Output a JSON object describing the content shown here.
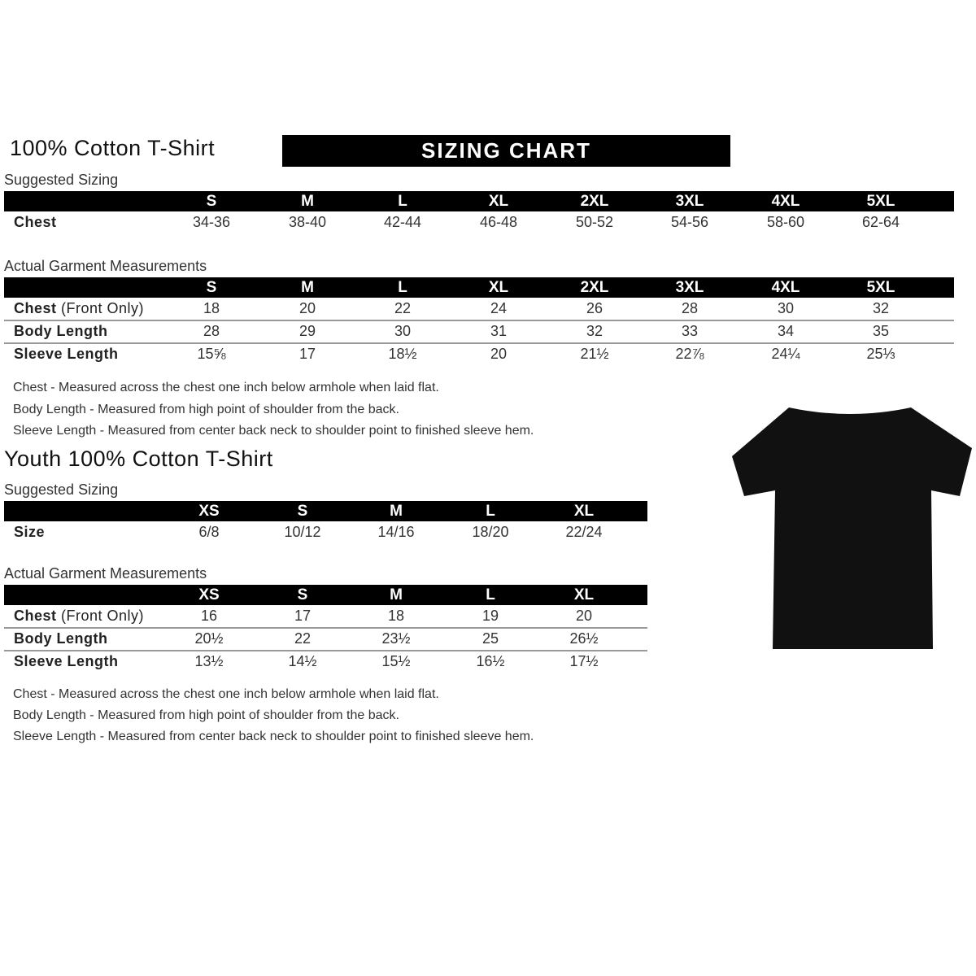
{
  "adult": {
    "title": "100% Cotton T-Shirt",
    "banner": "SIZING CHART",
    "suggested_label": "Suggested Sizing",
    "sizes": [
      "S",
      "M",
      "L",
      "XL",
      "2XL",
      "3XL",
      "4XL",
      "5XL"
    ],
    "suggested_rows": [
      {
        "label": "Chest",
        "values": [
          "34-36",
          "38-40",
          "42-44",
          "46-48",
          "50-52",
          "54-56",
          "58-60",
          "62-64"
        ]
      }
    ],
    "actual_label": "Actual Garment Measurements",
    "actual_rows": [
      {
        "label": "Chest",
        "label_note": "(Front Only)",
        "values": [
          "18",
          "20",
          "22",
          "24",
          "26",
          "28",
          "30",
          "32"
        ]
      },
      {
        "label": "Body Length",
        "values": [
          "28",
          "29",
          "30",
          "31",
          "32",
          "33",
          "34",
          "35"
        ]
      },
      {
        "label": "Sleeve Length",
        "values": [
          "15⅝",
          "17",
          "18½",
          "20",
          "21½",
          "22⅞",
          "24¼",
          "25⅓"
        ]
      }
    ],
    "notes": [
      "Chest - Measured across the chest one inch below armhole when laid flat.",
      "Body Length - Measured from high point of shoulder from the back.",
      "Sleeve Length - Measured from center back neck to shoulder point to finished sleeve hem."
    ]
  },
  "youth": {
    "title": "Youth 100% Cotton T-Shirt",
    "suggested_label": "Suggested Sizing",
    "sizes": [
      "XS",
      "S",
      "M",
      "L",
      "XL"
    ],
    "suggested_rows": [
      {
        "label": "Size",
        "values": [
          "6/8",
          "10/12",
          "14/16",
          "18/20",
          "22/24"
        ]
      }
    ],
    "actual_label": "Actual Garment Measurements",
    "actual_rows": [
      {
        "label": "Chest",
        "label_note": "(Front Only)",
        "values": [
          "16",
          "17",
          "18",
          "19",
          "20"
        ]
      },
      {
        "label": "Body Length",
        "values": [
          "20½",
          "22",
          "23½",
          "25",
          "26½"
        ]
      },
      {
        "label": "Sleeve Length",
        "values": [
          "13½",
          "14½",
          "15½",
          "16½",
          "17½"
        ]
      }
    ],
    "notes": [
      "Chest - Measured across the chest one inch below armhole when laid flat.",
      "Body Length - Measured from high point of shoulder from the back.",
      "Sleeve Length - Measured from center back neck to shoulder point to finished sleeve hem."
    ]
  },
  "image": {
    "icon": "t-shirt-icon",
    "color": "#111111"
  }
}
